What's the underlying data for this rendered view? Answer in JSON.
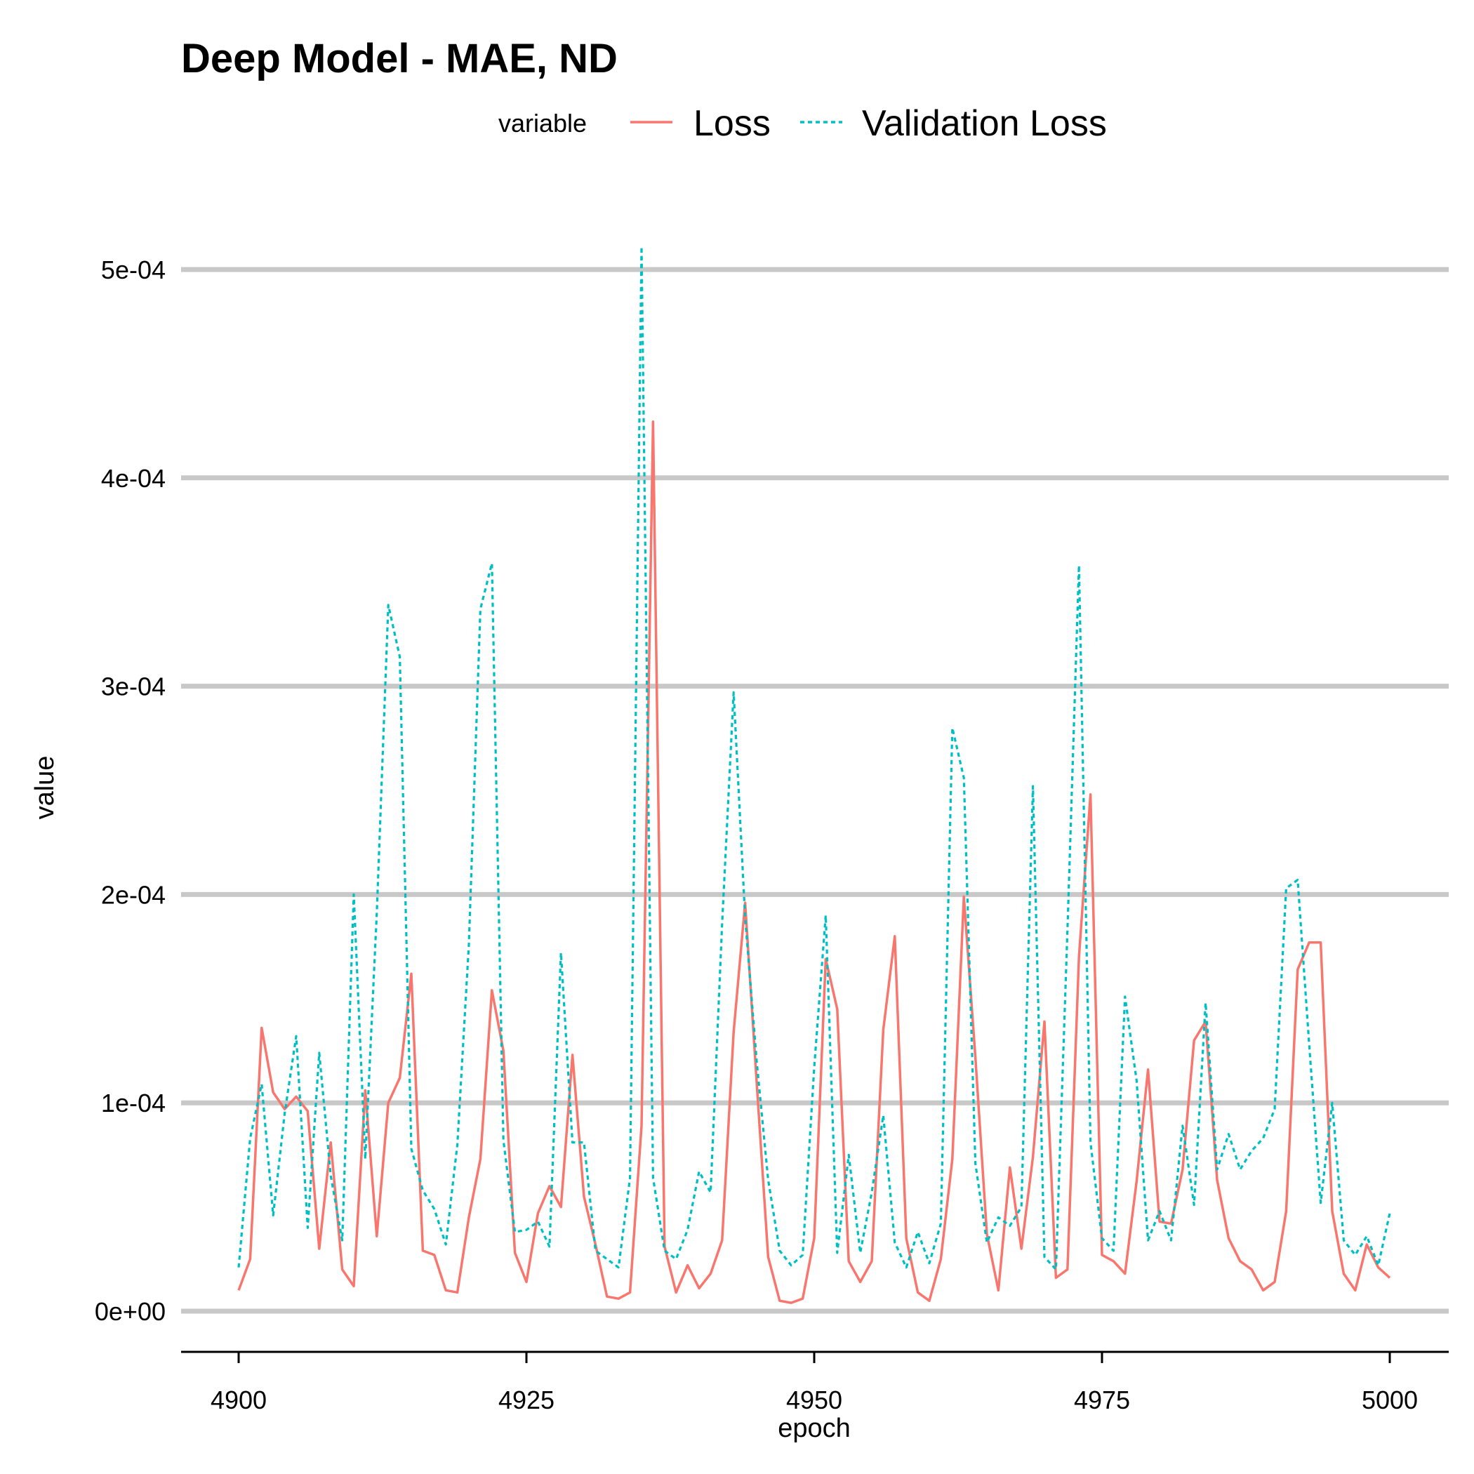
{
  "chart_data": {
    "type": "line",
    "title": "Deep Model - MAE, ND",
    "xlabel": "epoch",
    "ylabel": "value",
    "xlim": [
      4895,
      5005
    ],
    "ylim": [
      -2e-05,
      0.00052
    ],
    "x_ticks": [
      4900,
      4925,
      4950,
      4975,
      5000
    ],
    "x_tick_labels": [
      "4900",
      "4925",
      "4950",
      "4975",
      "5000"
    ],
    "y_ticks": [
      0,
      0.0001,
      0.0002,
      0.0003,
      0.0004,
      0.0005
    ],
    "y_tick_labels": [
      "0e+00",
      "1e-04",
      "2e-04",
      "3e-04",
      "4e-04",
      "5e-04"
    ],
    "grid": "horizontal major lines",
    "legend": {
      "title": "variable",
      "position": "top",
      "entries": [
        "Loss",
        "Validation Loss"
      ]
    },
    "x": [
      4900,
      4901,
      4902,
      4903,
      4904,
      4905,
      4906,
      4907,
      4908,
      4909,
      4910,
      4911,
      4912,
      4913,
      4914,
      4915,
      4916,
      4917,
      4918,
      4919,
      4920,
      4921,
      4922,
      4923,
      4924,
      4925,
      4926,
      4927,
      4928,
      4929,
      4930,
      4931,
      4932,
      4933,
      4934,
      4935,
      4936,
      4937,
      4938,
      4939,
      4940,
      4941,
      4942,
      4943,
      4944,
      4945,
      4946,
      4947,
      4948,
      4949,
      4950,
      4951,
      4952,
      4953,
      4954,
      4955,
      4956,
      4957,
      4958,
      4959,
      4960,
      4961,
      4962,
      4963,
      4964,
      4965,
      4966,
      4967,
      4968,
      4969,
      4970,
      4971,
      4972,
      4973,
      4974,
      4975,
      4976,
      4977,
      4978,
      4979,
      4980,
      4981,
      4982,
      4983,
      4984,
      4985,
      4986,
      4987,
      4988,
      4989,
      4990,
      4991,
      4992,
      4993,
      4994,
      4995,
      4996,
      4997,
      4998,
      4999,
      5000
    ],
    "series": [
      {
        "name": "Loss",
        "color": "#F8766D",
        "linetype": "solid",
        "values": [
          1e-05,
          2.5e-05,
          0.000136,
          0.000105,
          9.7e-05,
          0.000103,
          9.6e-05,
          3e-05,
          8.1e-05,
          2e-05,
          1.2e-05,
          0.000106,
          3.6e-05,
          0.0001,
          0.000112,
          0.000162,
          2.9e-05,
          2.7e-05,
          1e-05,
          9e-06,
          4.5e-05,
          7.3e-05,
          0.000154,
          0.000125,
          2.8e-05,
          1.4e-05,
          4.7e-05,
          6e-05,
          5e-05,
          0.000123,
          5.5e-05,
          3.2e-05,
          7e-06,
          6e-06,
          9e-06,
          8.9e-05,
          0.000427,
          3.1e-05,
          9e-06,
          2.2e-05,
          1.1e-05,
          1.8e-05,
          3.4e-05,
          0.000134,
          0.000196,
          0.00011,
          2.6e-05,
          5e-06,
          4e-06,
          6e-06,
          3.5e-05,
          0.000169,
          0.000145,
          2.4e-05,
          1.4e-05,
          2.4e-05,
          0.000135,
          0.00018,
          3.5e-05,
          9e-06,
          5e-06,
          2.5e-05,
          7.3e-05,
          0.000199,
          0.000122,
          3.7e-05,
          1e-05,
          6.9e-05,
          3e-05,
          7.4e-05,
          0.000139,
          1.6e-05,
          2e-05,
          0.00017,
          0.000248,
          2.7e-05,
          2.4e-05,
          1.8e-05,
          6.2e-05,
          0.000116,
          4.3e-05,
          4.2e-05,
          6.8e-05,
          0.00013,
          0.000139,
          6.3e-05,
          3.5e-05,
          2.4e-05,
          2e-05,
          1e-05,
          1.4e-05,
          4.8e-05,
          0.000164,
          0.000177,
          0.000177,
          4.8e-05,
          1.8e-05,
          1e-05,
          3.2e-05,
          2.1e-05,
          1.6e-05
        ]
      },
      {
        "name": "Validation Loss",
        "color": "#00BFC4",
        "linetype": "dotted",
        "values": [
          2.1e-05,
          8.3e-05,
          0.000109,
          4.6e-05,
          9.5e-05,
          0.000132,
          4e-05,
          0.000124,
          6.5e-05,
          3.4e-05,
          0.0002,
          7.3e-05,
          0.000191,
          0.000339,
          0.000314,
          7.8e-05,
          5.8e-05,
          4.9e-05,
          3.2e-05,
          8e-05,
          0.000176,
          0.000337,
          0.000359,
          8.2e-05,
          3.8e-05,
          3.9e-05,
          4.3e-05,
          3.1e-05,
          0.000172,
          8.1e-05,
          8.1e-05,
          2.9e-05,
          2.5e-05,
          2.1e-05,
          6.4e-05,
          0.000511,
          6.4e-05,
          2.9e-05,
          2.5e-05,
          3.9e-05,
          6.7e-05,
          5.7e-05,
          0.000186,
          0.000297,
          0.000189,
          0.00012,
          6.3e-05,
          2.9e-05,
          2.2e-05,
          2.7e-05,
          0.000117,
          0.00019,
          2.8e-05,
          7.5e-05,
          2.8e-05,
          5.7e-05,
          9.4e-05,
          3.3e-05,
          2.1e-05,
          3.8e-05,
          2.3e-05,
          4.2e-05,
          0.00028,
          0.000256,
          7.1e-05,
          3.3e-05,
          4.5e-05,
          4.1e-05,
          5e-05,
          0.000252,
          2.6e-05,
          2e-05,
          0.000183,
          0.000358,
          8.1e-05,
          3.5e-05,
          2.9e-05,
          0.000151,
          0.000111,
          3.4e-05,
          4.8e-05,
          3.4e-05,
          8.9e-05,
          5.1e-05,
          0.000148,
          6.8e-05,
          8.5e-05,
          6.8e-05,
          7.7e-05,
          8.3e-05,
          9.7e-05,
          0.000203,
          0.000207,
          0.000128,
          5.2e-05,
          0.0001,
          3.4e-05,
          2.7e-05,
          3.6e-05,
          2.2e-05,
          4.7e-05
        ]
      }
    ]
  }
}
